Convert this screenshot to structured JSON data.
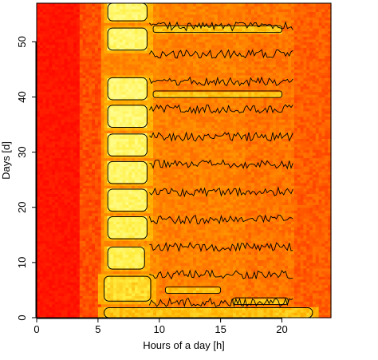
{
  "chart_data": {
    "type": "heatmap",
    "title": "",
    "xlabel": "Hours of a day [h]",
    "ylabel": "Days [d]",
    "xlim": [
      0,
      24
    ],
    "ylim": [
      0,
      57
    ],
    "x_ticks": [
      0,
      5,
      10,
      15,
      20
    ],
    "y_ticks": [
      0,
      10,
      20,
      30,
      40,
      50
    ],
    "x_tick_labels": [
      "0",
      "5",
      "10",
      "15",
      "20"
    ],
    "y_tick_labels": [
      "0",
      "10",
      "20",
      "30",
      "40",
      "50"
    ],
    "colormap": [
      "#ff0000",
      "#ff6a00",
      "#ffb000",
      "#ffee40",
      "#ffff9a"
    ],
    "contour_color": "#000000",
    "grid": false,
    "legend": "none",
    "high_activity_blocks": [
      {
        "days": [
          53.8,
          57
        ],
        "hours": [
          5.8,
          9.0
        ],
        "level": 0.9
      },
      {
        "days": [
          48.5,
          52.5
        ],
        "hours": [
          5.8,
          9.0
        ],
        "level": 0.9
      },
      {
        "days": [
          39.5,
          43.5
        ],
        "hours": [
          5.8,
          9.0
        ],
        "level": 0.92
      },
      {
        "days": [
          34.5,
          38.5
        ],
        "hours": [
          5.8,
          9.0
        ],
        "level": 0.92
      },
      {
        "days": [
          29.3,
          33.3
        ],
        "hours": [
          5.8,
          9.0
        ],
        "level": 0.9
      },
      {
        "days": [
          24.3,
          28.3
        ],
        "hours": [
          5.8,
          9.0
        ],
        "level": 0.9
      },
      {
        "days": [
          19.3,
          23.3
        ],
        "hours": [
          5.8,
          9.0
        ],
        "level": 0.88
      },
      {
        "days": [
          14.3,
          18.3
        ],
        "hours": [
          5.8,
          9.0
        ],
        "level": 0.85
      },
      {
        "days": [
          8.8,
          12.8
        ],
        "hours": [
          5.8,
          8.8
        ],
        "level": 0.82
      },
      {
        "days": [
          3.0,
          7.5
        ],
        "hours": [
          5.5,
          9.3
        ],
        "level": 0.7
      },
      {
        "days": [
          0.0,
          1.8
        ],
        "hours": [
          5.5,
          22.5
        ],
        "level": 0.6
      }
    ],
    "orange_streaks": [
      {
        "day": 5.0,
        "hours": [
          10.5,
          15.0
        ]
      },
      {
        "day": 3.0,
        "hours": [
          16.0,
          20.5
        ]
      },
      {
        "day": 52.3,
        "hours": [
          9.5,
          20.0
        ]
      },
      {
        "day": 40.5,
        "hours": [
          9.5,
          20.0
        ]
      }
    ]
  }
}
